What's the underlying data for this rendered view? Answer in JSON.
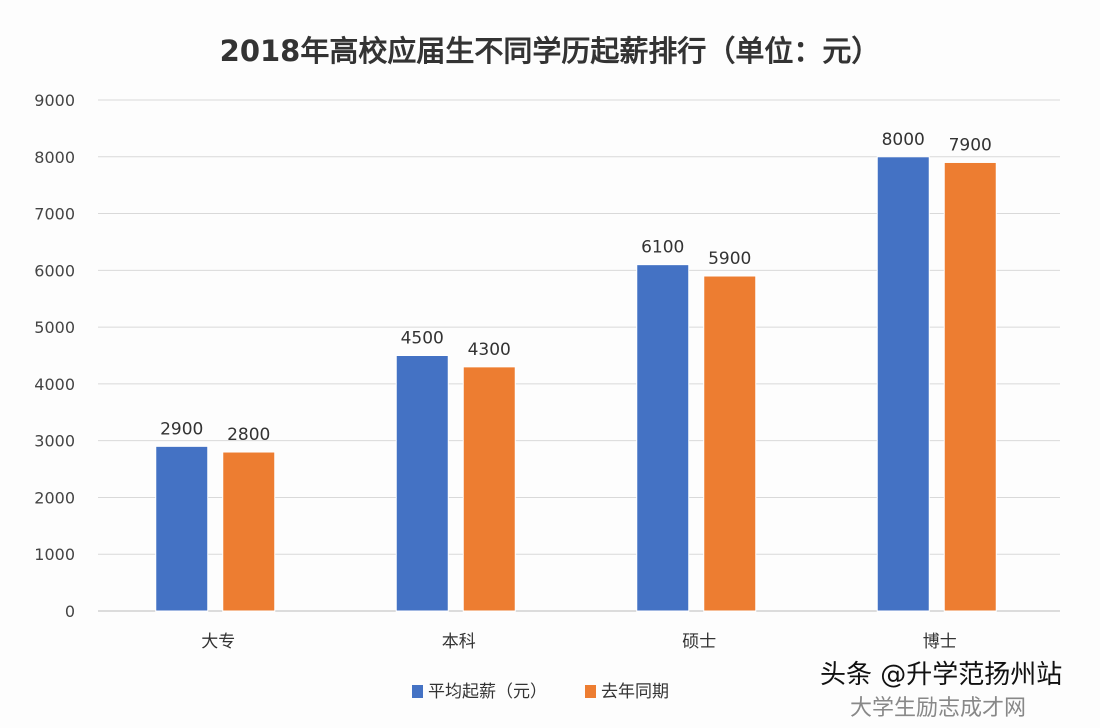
{
  "chart_data": {
    "type": "bar",
    "title": "2018年高校应届生不同学历起薪排行（单位：元）",
    "categories": [
      "大专",
      "本科",
      "硕士",
      "博士"
    ],
    "series": [
      {
        "name": "平均起薪（元）",
        "values": [
          2900,
          4500,
          6100,
          8000
        ],
        "color": "#4472c4"
      },
      {
        "name": "去年同期",
        "values": [
          2800,
          4300,
          5900,
          7900
        ],
        "color": "#ed7d31"
      }
    ],
    "ylim": [
      0,
      9000
    ],
    "yticks": [
      0,
      1000,
      2000,
      3000,
      4000,
      5000,
      6000,
      7000,
      8000,
      9000
    ],
    "grid": true,
    "legend": "bottom",
    "data_labels": true
  },
  "watermark": {
    "text": "头条 @升学范扬州站",
    "background_text": "大学生励志成才网"
  }
}
